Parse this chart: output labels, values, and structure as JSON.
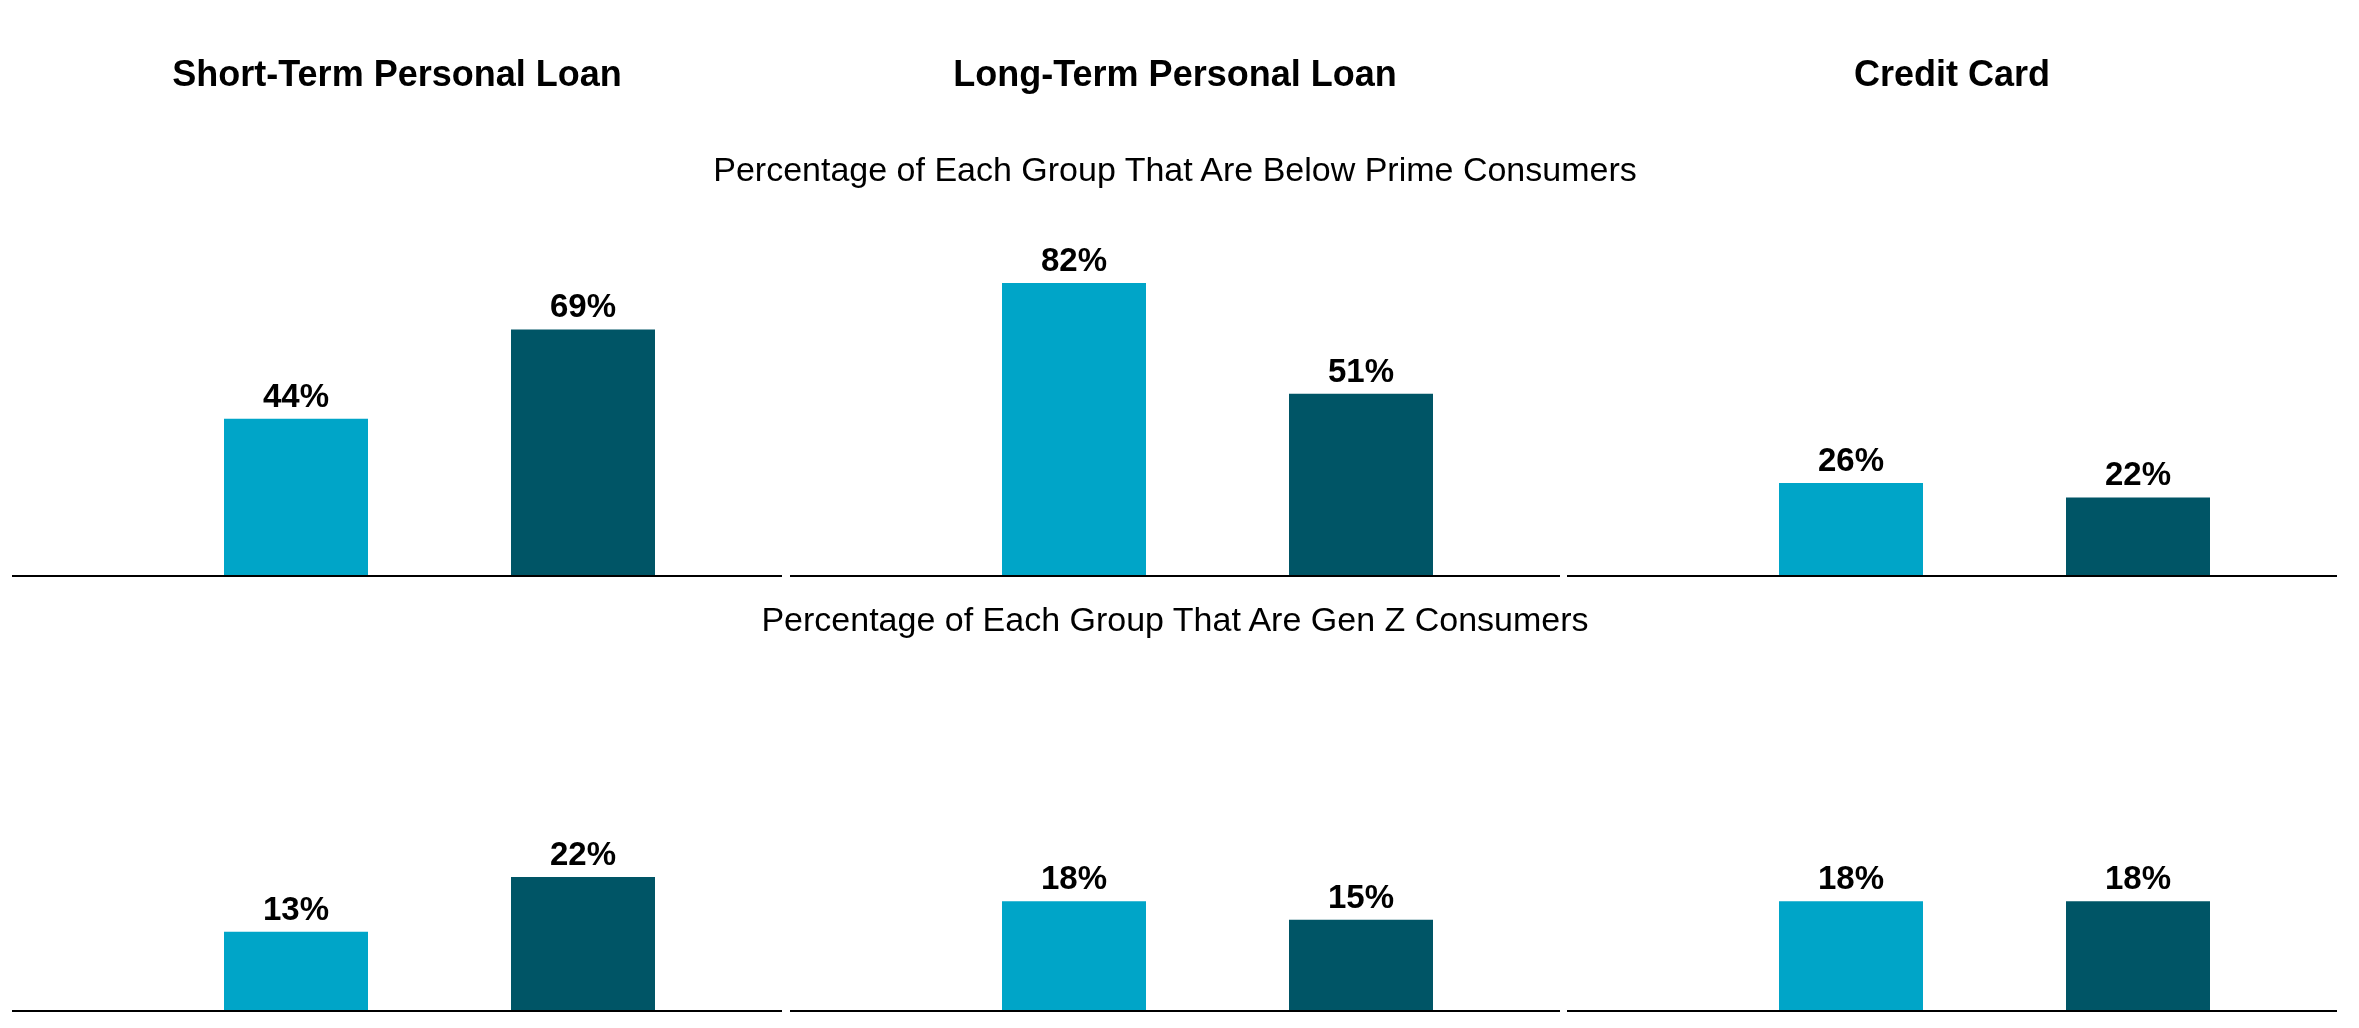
{
  "chart_data": [
    {
      "type": "bar",
      "title": "Short-Term Personal Loan",
      "categories": [
        null,
        null
      ],
      "values": [
        44,
        69
      ],
      "colors": [
        "#00a5c8",
        "#005566"
      ],
      "value_labels": [
        "44%",
        "69%"
      ]
    },
    {
      "type": "bar",
      "title": "Long-Term Personal Loan",
      "subtitle": "Percentage of Each Group That Are Below Prime Consumers",
      "categories": [
        null,
        null
      ],
      "values": [
        82,
        51
      ],
      "colors": [
        "#00a5c8",
        "#005566"
      ],
      "value_labels": [
        "82%",
        "51%"
      ]
    },
    {
      "type": "bar",
      "title": "Credit Card",
      "categories": [
        null,
        null
      ],
      "values": [
        26,
        22
      ],
      "colors": [
        "#00a5c8",
        "#005566"
      ],
      "value_labels": [
        "26%",
        "22%"
      ]
    },
    {
      "type": "bar",
      "categories": [
        null,
        null
      ],
      "values": [
        13,
        22
      ],
      "colors": [
        "#00a5c8",
        "#005566"
      ],
      "value_labels": [
        "13%",
        "22%"
      ]
    },
    {
      "type": "bar",
      "subtitle": "Percentage of Each Group That Are Gen Z Consumers",
      "categories": [
        null,
        null
      ],
      "values": [
        18,
        15
      ],
      "colors": [
        "#00a5c8",
        "#005566"
      ],
      "value_labels": [
        "18%",
        "15%"
      ]
    },
    {
      "type": "bar",
      "categories": [
        null,
        null
      ],
      "values": [
        18,
        18
      ],
      "colors": [
        "#00a5c8",
        "#005566"
      ],
      "value_labels": [
        "18%",
        "18%"
      ]
    }
  ]
}
